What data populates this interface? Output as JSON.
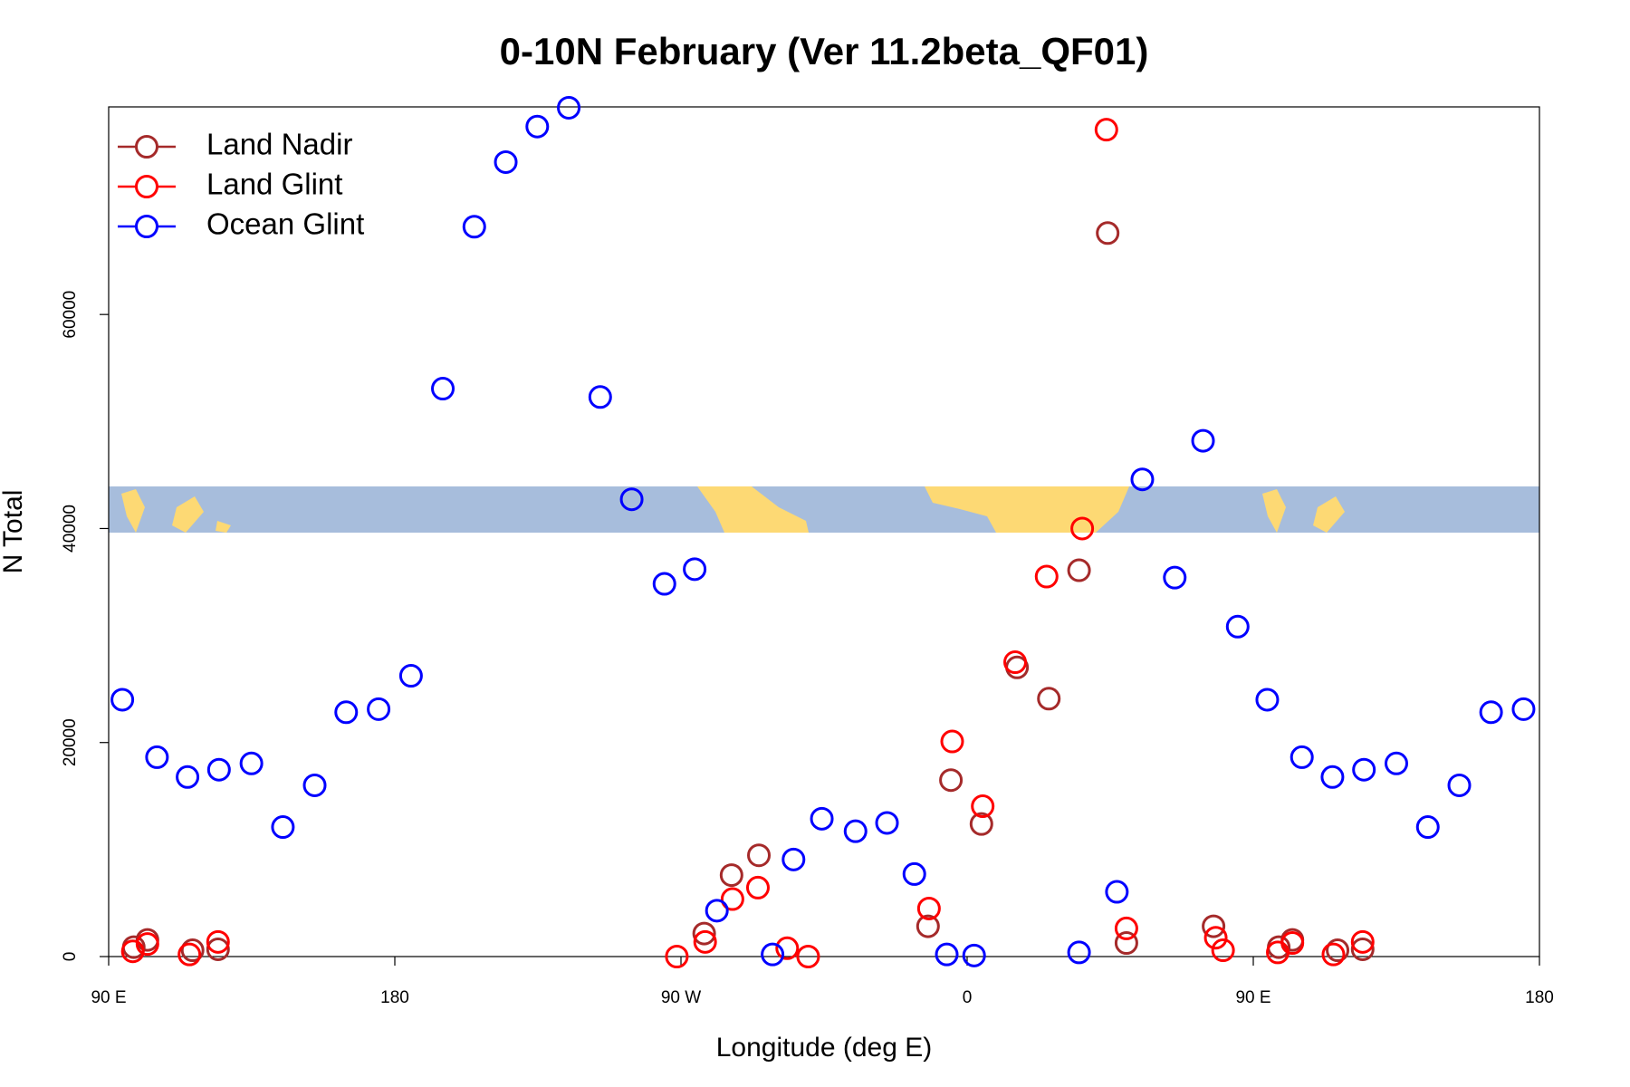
{
  "chart_data": {
    "type": "scatter",
    "title": "0-10N February (Ver 11.2beta_QF01)",
    "xlabel": "Longitude (deg E)",
    "ylabel": "N Total",
    "xlim": [
      90,
      540
    ],
    "ylim": [
      0,
      79400
    ],
    "xticks": [
      {
        "value": 90,
        "label": "90 E"
      },
      180,
      {
        "value": 270,
        "label": "90 W"
      },
      {
        "value": 360,
        "label": "0"
      },
      {
        "value": 450,
        "label": "90 E"
      },
      {
        "value": 540,
        "label": "180"
      }
    ],
    "yticks": [
      0,
      20000,
      40000,
      60000
    ],
    "legend": "top-left",
    "series": [
      {
        "name": "Land Nadir",
        "color": "#a52a2a",
        "x": [
          97.9,
          102.2,
          116.4,
          124.4,
          277.3,
          285.9,
          294.5,
          347.7,
          354.9,
          364.5,
          375.7,
          385.7,
          395.2,
          404.2,
          410.1,
          437.5,
          458.0,
          462.3,
          476.5,
          484.4
        ],
        "values": [
          880,
          1560,
          590,
          680,
          2150,
          7610,
          9460,
          2830,
          16490,
          12390,
          27020,
          24100,
          36100,
          67610,
          1270,
          2830,
          880,
          1560,
          590,
          680
        ]
      },
      {
        "name": "Land Glint",
        "color": "#ff0000",
        "x": [
          97.6,
          102.2,
          115.4,
          124.4,
          268.7,
          277.6,
          286.2,
          294.2,
          303.4,
          310.0,
          348.0,
          355.3,
          364.9,
          375.1,
          385.0,
          396.2,
          403.8,
          410.1,
          438.2,
          440.5,
          457.7,
          462.3,
          475.2,
          484.4
        ],
        "values": [
          490,
          1170,
          200,
          1370,
          0,
          1370,
          5370,
          6440,
          780,
          0,
          4490,
          20100,
          14050,
          27510,
          35510,
          40000,
          77270,
          2630,
          1760,
          590,
          390,
          1270,
          200,
          1370
        ]
      },
      {
        "name": "Ocean Glint",
        "color": "#0000ff",
        "x": [
          94.3,
          105.2,
          114.8,
          124.7,
          134.9,
          144.8,
          154.8,
          164.7,
          174.9,
          185.1,
          195.1,
          205.0,
          214.9,
          224.8,
          234.7,
          244.6,
          254.5,
          264.8,
          274.3,
          281.3,
          298.8,
          305.4,
          314.3,
          324.9,
          334.8,
          343.4,
          353.6,
          362.2,
          395.2,
          407.1,
          415.1,
          425.3,
          434.2,
          445.1,
          454.4,
          465.3,
          474.9,
          484.8,
          495.0,
          504.9,
          514.8,
          524.8,
          535.0
        ],
        "values": [
          24000,
          18630,
          16780,
          17460,
          18050,
          12100,
          16000,
          22830,
          23120,
          26240,
          53070,
          68200,
          74240,
          77560,
          79320,
          52290,
          42730,
          34830,
          36200,
          4290,
          200,
          9070,
          12880,
          11710,
          12490,
          7710,
          200,
          100,
          390,
          6050,
          44590,
          35410,
          48200,
          30830,
          24000,
          18630,
          16780,
          17460,
          18050,
          12100,
          16000,
          22830,
          23120
        ]
      }
    ]
  }
}
